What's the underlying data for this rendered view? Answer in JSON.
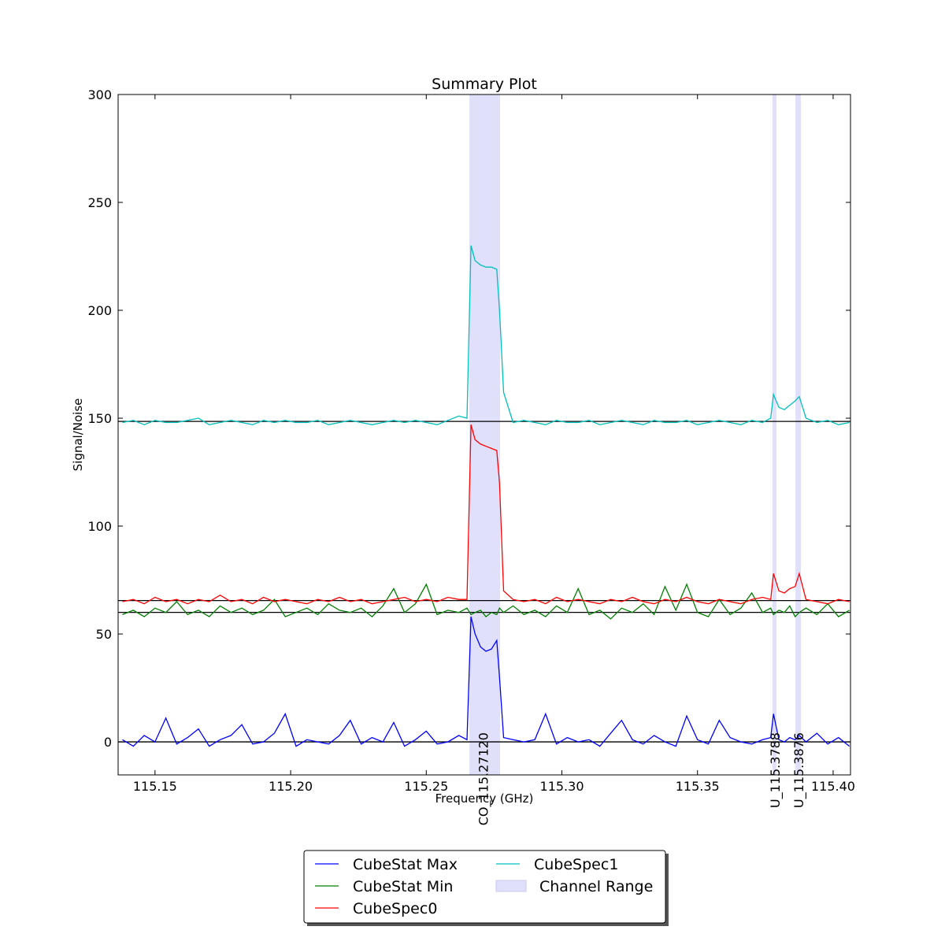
{
  "chart_data": {
    "type": "line",
    "title": "Summary Plot",
    "x_label": "Frequency (GHz)",
    "y_label": "Signal/Noise",
    "x": [
      115.138,
      115.142,
      115.146,
      115.15,
      115.154,
      115.158,
      115.162,
      115.166,
      115.17,
      115.174,
      115.178,
      115.182,
      115.186,
      115.19,
      115.194,
      115.198,
      115.202,
      115.206,
      115.21,
      115.214,
      115.218,
      115.222,
      115.226,
      115.23,
      115.234,
      115.238,
      115.242,
      115.246,
      115.25,
      115.254,
      115.258,
      115.262,
      115.265,
      115.2665,
      115.268,
      115.27,
      115.272,
      115.274,
      115.276,
      115.277,
      115.2785,
      115.282,
      115.286,
      115.29,
      115.294,
      115.298,
      115.302,
      115.306,
      115.31,
      115.314,
      115.318,
      115.322,
      115.326,
      115.33,
      115.334,
      115.338,
      115.342,
      115.346,
      115.35,
      115.354,
      115.358,
      115.362,
      115.366,
      115.37,
      115.374,
      115.377,
      115.378,
      115.38,
      115.382,
      115.384,
      115.386,
      115.3875,
      115.39,
      115.394,
      115.398,
      115.402,
      115.406
    ],
    "series": [
      {
        "name": "CubeStat Max",
        "color": "#0000ff",
        "values": [
          1,
          -2,
          3,
          0,
          11,
          -1,
          2,
          6,
          -2,
          1,
          3,
          8,
          -1,
          0,
          4,
          13,
          -2,
          1,
          0,
          -1,
          3,
          10,
          -1,
          2,
          0,
          9,
          -2,
          1,
          5,
          -1,
          0,
          3,
          1,
          58,
          50,
          44,
          42,
          43,
          47,
          30,
          2,
          1,
          0,
          1,
          13,
          -1,
          2,
          0,
          1,
          -2,
          4,
          10,
          1,
          -1,
          3,
          0,
          -2,
          12,
          1,
          -1,
          10,
          2,
          0,
          -1,
          1,
          2,
          13,
          1,
          0,
          2,
          1,
          3,
          0,
          4,
          -1,
          2,
          -2
        ]
      },
      {
        "name": "CubeStat Min",
        "color": "#008000",
        "values": [
          59,
          61,
          58,
          62,
          60,
          65,
          59,
          61,
          58,
          63,
          60,
          62,
          59,
          61,
          66,
          58,
          60,
          62,
          59,
          64,
          61,
          60,
          62,
          58,
          63,
          71,
          60,
          64,
          73,
          59,
          61,
          60,
          62,
          59,
          60,
          61,
          58,
          60,
          59,
          62,
          60,
          63,
          59,
          61,
          58,
          63,
          60,
          71,
          59,
          61,
          57,
          62,
          60,
          64,
          59,
          72,
          61,
          73,
          60,
          58,
          66,
          59,
          62,
          69,
          60,
          62,
          59,
          61,
          60,
          63,
          58,
          60,
          62,
          59,
          64,
          58,
          61
        ]
      },
      {
        "name": "CubeSpec0",
        "color": "#ff0000",
        "values": [
          65,
          66,
          64,
          67,
          65,
          66,
          64,
          66,
          65,
          68,
          65,
          66,
          64,
          67,
          65,
          66,
          65,
          64,
          66,
          65,
          67,
          65,
          66,
          64,
          65,
          66,
          67,
          65,
          66,
          65,
          67,
          66,
          66,
          147,
          140,
          138,
          137,
          136,
          135,
          120,
          70,
          66,
          65,
          66,
          64,
          67,
          65,
          66,
          65,
          64,
          66,
          65,
          67,
          65,
          64,
          66,
          65,
          67,
          65,
          64,
          66,
          65,
          64,
          66,
          67,
          66,
          78,
          70,
          69,
          71,
          72,
          78,
          66,
          65,
          64,
          66,
          65
        ]
      },
      {
        "name": "CubeSpec1",
        "color": "#00bfbf",
        "values": [
          148,
          149,
          147,
          149,
          148,
          148,
          149,
          150,
          147,
          148,
          149,
          148,
          147,
          149,
          148,
          149,
          148,
          148,
          149,
          147,
          148,
          149,
          148,
          147,
          148,
          149,
          148,
          149,
          148,
          147,
          149,
          151,
          150,
          230,
          223,
          221,
          220,
          220,
          219,
          200,
          162,
          148,
          149,
          148,
          147,
          149,
          148,
          148,
          149,
          147,
          148,
          149,
          148,
          147,
          149,
          148,
          148,
          149,
          147,
          148,
          149,
          148,
          147,
          149,
          148,
          150,
          161,
          155,
          154,
          156,
          158,
          160,
          150,
          148,
          149,
          147,
          148
        ]
      }
    ],
    "hlines": [
      0,
      60,
      65.5,
      148.5
    ],
    "spans": [
      [
        115.2659,
        115.2772
      ],
      [
        115.3776,
        115.3791
      ],
      [
        115.3861,
        115.3881
      ]
    ],
    "span_label": "Channel Range",
    "span_color": "#e0e0fa",
    "annotations": [
      {
        "text": "CO_115.27120",
        "x": 115.2712
      },
      {
        "text": "U_115.3788",
        "x": 115.3788
      },
      {
        "text": "U_115.3876",
        "x": 115.3876
      }
    ],
    "xlim": [
      115.1364,
      115.4064
    ],
    "ylim": [
      -15.3,
      300
    ],
    "xticks": [
      115.15,
      {
        "value": 115.2,
        "label": "115.20"
      },
      115.25,
      {
        "value": 115.3,
        "label": "115.30"
      },
      115.35,
      {
        "value": 115.4,
        "label": "115.40"
      }
    ],
    "yticks": [
      0,
      50,
      100,
      150,
      200,
      250,
      300
    ],
    "legend": "bottom"
  }
}
